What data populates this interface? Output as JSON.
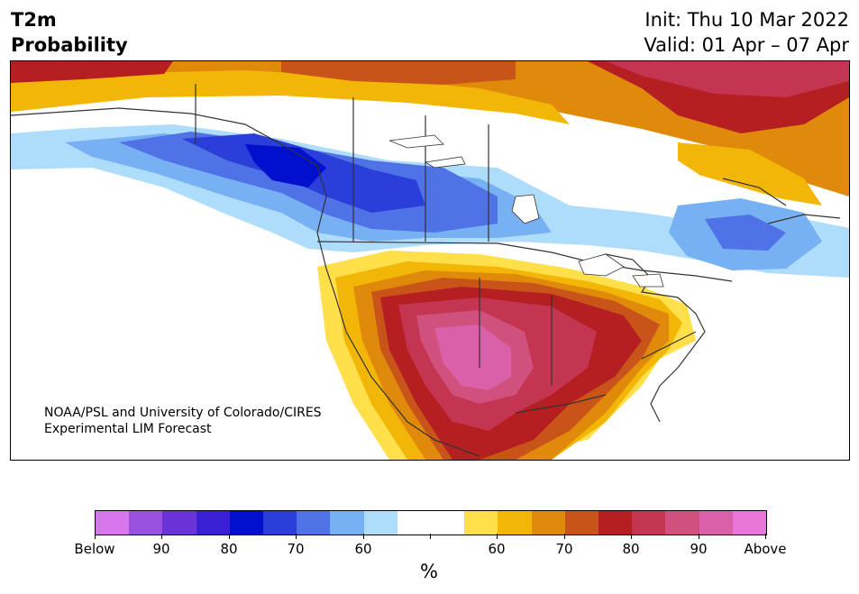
{
  "header": {
    "title_line1": "T2m",
    "title_line2": "Probability",
    "init": "Init: Thu 10 Mar 2022",
    "valid": "Valid: 01 Apr – 07 Apr"
  },
  "credit": {
    "line1": "NOAA/PSL and University of Colorado/CIRES",
    "line2": "Experimental LIM Forecast"
  },
  "colorbar": {
    "colors": [
      "#d676ea",
      "#9b51e0",
      "#6a33d8",
      "#3a1fd4",
      "#0010cc",
      "#2a3fd9",
      "#4f72e6",
      "#78b0f4",
      "#aedcfb",
      "#ffffff",
      "#ffffff",
      "#ffdf4a",
      "#f2b607",
      "#e08a0c",
      "#c9541a",
      "#b51f22",
      "#c33550",
      "#d0507e",
      "#da60aa",
      "#e877d9"
    ],
    "tick_labels": [
      "Below",
      "90",
      "80",
      "70",
      "60",
      "",
      "60",
      "70",
      "80",
      "90",
      "Above"
    ],
    "units": "%"
  }
}
